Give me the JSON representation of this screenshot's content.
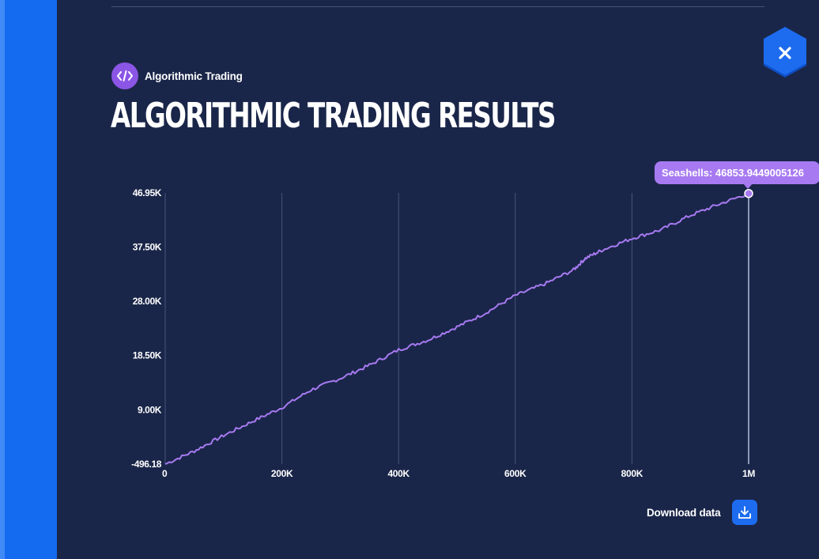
{
  "header": {
    "category_label": "Algorithmic Trading",
    "category_icon": "code-icon",
    "title": "ALGORITHMIC TRADING RESULTS"
  },
  "close_button": {
    "icon": "close-icon"
  },
  "colors": {
    "background": "#1a2649",
    "accent_strip": "#156bf0",
    "line": "#a77af2",
    "grid": "#47537a",
    "button": "#1d6cf0"
  },
  "tooltip": {
    "text": "Seashells: 46853.9449005126"
  },
  "download": {
    "label": "Download data",
    "icon": "download-icon"
  },
  "chart_data": {
    "type": "line",
    "title": "",
    "xlabel": "",
    "ylabel": "",
    "xlim": [
      0,
      1000000
    ],
    "ylim": [
      -496.18,
      46950
    ],
    "x_ticks": [
      0,
      200000,
      400000,
      600000,
      800000,
      1000000
    ],
    "x_tick_labels": [
      "0",
      "200K",
      "400K",
      "600K",
      "800K",
      "1M"
    ],
    "y_ticks": [
      -496.18,
      9000,
      18500,
      28000,
      37500,
      46950
    ],
    "y_tick_labels": [
      "-496.18",
      "9.00K",
      "18.50K",
      "28.00K",
      "37.50K",
      "46.95K"
    ],
    "grid": "vertical",
    "series": [
      {
        "name": "Seashells",
        "x": [
          0,
          50000,
          100000,
          150000,
          200000,
          250000,
          300000,
          350000,
          400000,
          450000,
          500000,
          550000,
          600000,
          650000,
          700000,
          720000,
          750000,
          800000,
          850000,
          900000,
          950000,
          1000000
        ],
        "y": [
          -496.18,
          1800,
          4500,
          7000,
          9400,
          12500,
          14500,
          16800,
          19500,
          21200,
          23500,
          26000,
          29000,
          31000,
          33500,
          35500,
          37000,
          39000,
          40500,
          43000,
          45000,
          46853.94
        ]
      }
    ],
    "highlight_point": {
      "x": 1000000,
      "y": 46853.94
    }
  }
}
